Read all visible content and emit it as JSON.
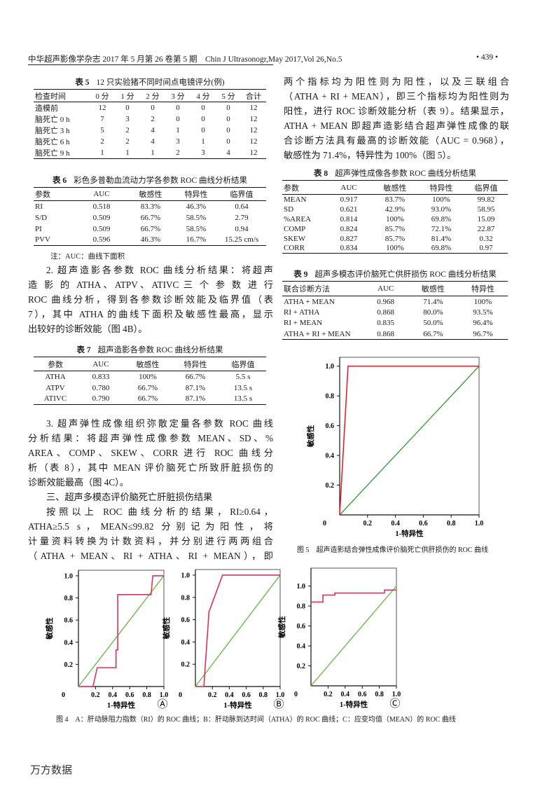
{
  "header": {
    "left": "中华超声影像学杂志 2017 年 5 月第 26 卷第 5 期　Chin J Ultrasonogr,May 2017,Vol 26,No.5",
    "page": "• 439 •"
  },
  "tables": {
    "t5": {
      "label": "表 5",
      "title": "12 只实验猪不同时间点电镜评分(例)",
      "headers": [
        "检查时间",
        "0 分",
        "1 分",
        "2 分",
        "3 分",
        "4 分",
        "5 分",
        "合计"
      ],
      "rows": [
        [
          "造模前",
          "12",
          "0",
          "0",
          "0",
          "0",
          "0",
          "12"
        ],
        [
          "脑死亡 0 h",
          "7",
          "3",
          "2",
          "0",
          "0",
          "0",
          "12"
        ],
        [
          "脑死亡 3 h",
          "5",
          "2",
          "4",
          "1",
          "0",
          "0",
          "12"
        ],
        [
          "脑死亡 6 h",
          "2",
          "2",
          "4",
          "3",
          "1",
          "0",
          "12"
        ],
        [
          "脑死亡 9 h",
          "1",
          "1",
          "1",
          "2",
          "3",
          "4",
          "12"
        ]
      ]
    },
    "t6": {
      "label": "表 6",
      "title": "彩色多普勒血流动力学各参数 ROC 曲线分析结果",
      "headers": [
        "参数",
        "AUC",
        "敏感性",
        "特异性",
        "临界值"
      ],
      "rows": [
        [
          "RI",
          "0.518",
          "83.3%",
          "46.3%",
          "0.64"
        ],
        [
          "S/D",
          "0.509",
          "66.7%",
          "58.5%",
          "2.79"
        ],
        [
          "PI",
          "0.509",
          "66.7%",
          "58.5%",
          "0.94"
        ],
        [
          "PVV",
          "0.596",
          "46.3%",
          "16.7%",
          "15.25 cm/s"
        ]
      ],
      "note": "注：AUC：曲线下面积"
    },
    "t7": {
      "label": "表 7",
      "title": "超声造影各参数 ROC 曲线分析结果",
      "headers": [
        "参数",
        "AUC",
        "敏感性",
        "特异性",
        "临界值"
      ],
      "rows": [
        [
          "ATHA",
          "0.833",
          "100%",
          "66.7%",
          "5.5 s"
        ],
        [
          "ATPV",
          "0.780",
          "66.7%",
          "87.1%",
          "13.5 s"
        ],
        [
          "ATIVC",
          "0.790",
          "66.7%",
          "87.1%",
          "13.5 s"
        ]
      ]
    },
    "t8": {
      "label": "表 8",
      "title": "超声弹性成像各参数 ROC 曲线分析结果",
      "headers": [
        "参数",
        "AUC",
        "敏感性",
        "特异性",
        "临界值"
      ],
      "rows": [
        [
          "MEAN",
          "0.917",
          "83.7%",
          "100%",
          "99.82"
        ],
        [
          "SD",
          "0.621",
          "42.9%",
          "93.0%",
          "58.95"
        ],
        [
          "%AREA",
          "0.814",
          "100%",
          "69.8%",
          "15.09"
        ],
        [
          "COMP",
          "0.824",
          "85.7%",
          "72.1%",
          "22.87"
        ],
        [
          "SKEW",
          "0.827",
          "85.7%",
          "81.4%",
          "0.32"
        ],
        [
          "CORR",
          "0.834",
          "100%",
          "69.8%",
          "0.97"
        ]
      ]
    },
    "t9": {
      "label": "表 9",
      "title": "超声多模态评价脑死亡供肝损伤 ROC 曲线分析结果",
      "headers": [
        "联合诊断方法",
        "AUC",
        "敏感性",
        "特异性"
      ],
      "rows": [
        [
          "ATHA + MEAN",
          "0.968",
          "71.4%",
          "100%"
        ],
        [
          "RI + ATHA",
          "0.868",
          "80.0%",
          "93.5%"
        ],
        [
          "RI + MEAN",
          "0.835",
          "50.0%",
          "96.4%"
        ],
        [
          "ATHA + RI + MEAN",
          "0.868",
          "66.7%",
          "96.7%"
        ]
      ]
    }
  },
  "text": {
    "p2": [
      "2. 超声造影各参数 ROC 曲线分析结果：将超声",
      "造 影 的 ATHA、ATPV、ATIVC 三 个 参 数 进 行",
      "ROC 曲线分析，得到各参数诊断效能及临界值（表",
      "7），其中 ATHA 的曲线下面积及敏感性最高，显示",
      "出较好的诊断效能（图 4B）。"
    ],
    "p3": [
      "3. 超声弹性成像组织弥散定量各参数 ROC 曲线",
      "分析结果：将超声弹性成像参数 MEAN、SD、%",
      "AREA、COMP、SKEW、CORR 进行 ROC 曲线分",
      "析（表 8），其中 MEAN 评价脑死亡所致肝脏损伤的",
      "诊断效能最高（图 4C）。"
    ],
    "h3": "三、超声多模态评价脑死亡肝脏损伤结果",
    "p4": [
      "按照以上 ROC 曲线分析的结果，RI≥0.64，",
      "ATHA≥5.5 s，MEAN≤99.82 分别记为阳性，将",
      "计量资料转换为计数资料，并分别进行两两组合",
      "（ATHA + MEAN、RI + ATHA、RI + MEAN），即"
    ],
    "p5": [
      "两个指标均为阳性则为阳性，以及三联组合",
      "（ATHA + RI + MEAN），即三个指标均为阳性则为",
      "阳性，进行 ROC 诊断效能分析（表 9）。结果显示，",
      "ATHA + MEAN 即超声造影结合超声弹性成像的联",
      "合诊断方法具有最高的诊断效能（AUC = 0.968），",
      "敏感性为 71.4%，特异性为 100%（图 5）。"
    ]
  },
  "figures": {
    "fig5": {
      "caption": "图 5　超声造影结合弹性成像评价脑死亡供肝损伤的 ROC 曲线",
      "xlabel": "1-特异性",
      "ylabel": "敏感性",
      "xticks": [
        "0.2",
        "0.4",
        "0.6",
        "0.8",
        "1.0"
      ],
      "yticks": [
        "0.2",
        "0.4",
        "0.6",
        "0.8",
        "1.0"
      ],
      "origin": "0",
      "ylim": [
        0,
        1.06
      ],
      "curve": [
        [
          0,
          0
        ],
        [
          0.06,
          1
        ],
        [
          1,
          1
        ]
      ],
      "reference": [
        [
          0,
          0
        ],
        [
          1,
          1
        ]
      ],
      "curve_color": "#e8202a",
      "reference_color": "#2e9a2e"
    },
    "fig4": {
      "caption": "图 4　A：肝动脉阻力指数（RI）的 ROC 曲线；B：肝动脉到达时间（ATHA）的 ROC 曲线；C：应变均值（MEAN）的 ROC 曲线",
      "panels": [
        {
          "mark": "Ⓐ",
          "xlabel": "1-特异性",
          "ylabel": "敏感性",
          "origin": "0",
          "xticks": [
            "0.2",
            "0.4",
            "0.6",
            "0.8",
            "1.0"
          ],
          "yticks": [
            "0.2",
            "0.4",
            "0.6",
            "0.8",
            "1.0"
          ],
          "ylim": [
            0,
            1.05
          ],
          "curve": [
            [
              0,
              0
            ],
            [
              0.17,
              0
            ],
            [
              0.22,
              0.17
            ],
            [
              0.44,
              0.17
            ],
            [
              0.44,
              0.33
            ],
            [
              0.46,
              0.33
            ],
            [
              0.46,
              0.83
            ],
            [
              0.85,
              0.83
            ],
            [
              0.87,
              1
            ],
            [
              1,
              1
            ]
          ],
          "reference": [
            [
              0,
              0
            ],
            [
              1,
              1
            ]
          ]
        },
        {
          "mark": "Ⓑ",
          "xlabel": "1-特异性",
          "ylabel": "敏感性",
          "origin": "0",
          "xticks": [
            "0.2",
            "0.4",
            "0.6",
            "0.8",
            "1.0"
          ],
          "yticks": [
            "0.2",
            "0.4",
            "0.6",
            "0.8",
            "1.0"
          ],
          "ylim": [
            0,
            1.05
          ],
          "curve": [
            [
              0,
              0
            ],
            [
              0.1,
              0
            ],
            [
              0.16,
              0.67
            ],
            [
              0.32,
              1
            ],
            [
              1,
              1
            ]
          ],
          "reference": [
            [
              0,
              0
            ],
            [
              1,
              1
            ]
          ]
        },
        {
          "mark": "Ⓒ",
          "xlabel": "1-特异性",
          "ylabel": "敏感性",
          "origin": "0",
          "xticks": [
            "0.2",
            "0.4",
            "0.6",
            "0.8",
            "1.0"
          ],
          "yticks": [
            "0.2",
            "0.4",
            "0.6",
            "0.8",
            "1.0"
          ],
          "ylim": [
            0,
            1.18
          ],
          "curve": [
            [
              0,
              0.84
            ],
            [
              0.14,
              0.84
            ],
            [
              0.14,
              0.91
            ],
            [
              0.28,
              0.91
            ],
            [
              0.28,
              0.93
            ],
            [
              0.86,
              0.93
            ],
            [
              0.86,
              0.96
            ],
            [
              1,
              0.96
            ]
          ],
          "reference": [
            [
              0,
              0
            ],
            [
              1,
              1
            ]
          ]
        }
      ],
      "curve_color": "#e0305a",
      "reference_color": "#5cb83a"
    }
  },
  "watermark": "万方数据"
}
